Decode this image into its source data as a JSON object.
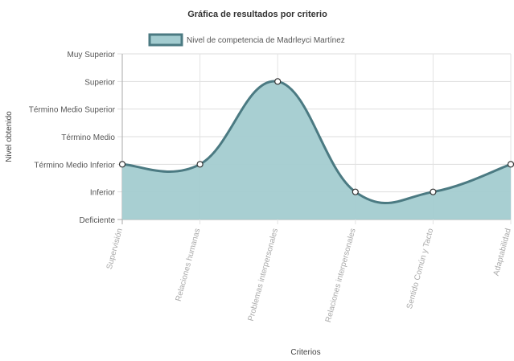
{
  "chart_data": {
    "type": "area",
    "title": "Gráfica de resultados por criterio",
    "xlabel": "Criterios",
    "ylabel": "Nivel obtenido",
    "categories": [
      "Supervisión",
      "Relaciones humanas",
      "Problemas interpersonales",
      "Relaciones interpersonales",
      "Sentido Común y Tacto",
      "Adaptabilidad"
    ],
    "y_levels": [
      "Deficiente",
      "Inferior",
      "Término Medio Inferior",
      "Término Medio",
      "Término Medio Superior",
      "Superior",
      "Muy Superior"
    ],
    "ylim": [
      0,
      6
    ],
    "grid": true,
    "legend_position": "top",
    "series": [
      {
        "name": "Nivel de competencia de Madrleyci Martínez",
        "values": [
          2,
          2,
          5,
          1,
          1,
          2
        ],
        "fill_color": "#a3ccd0",
        "line_color": "#4b7a82"
      }
    ]
  }
}
